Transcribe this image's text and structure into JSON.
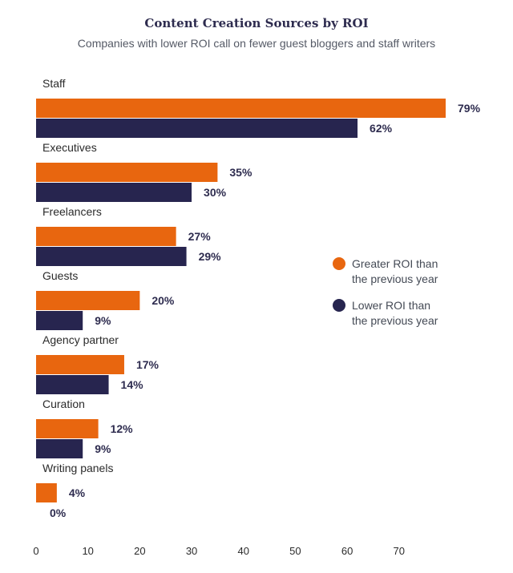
{
  "chart_data": {
    "type": "bar",
    "orientation": "horizontal",
    "title": "Content Creation Sources by ROI",
    "subtitle": "Companies with lower ROI call on fewer guest bloggers and staff writers",
    "categories": [
      "Staff",
      "Executives",
      "Freelancers",
      "Guests",
      "Agency partner",
      "Curation",
      "Writing panels"
    ],
    "series": [
      {
        "name": "Greater ROI than the previous year",
        "legend_lines": [
          "Greater ROI than",
          "the previous year"
        ],
        "color": "#e8660f",
        "values": [
          79,
          35,
          27,
          20,
          17,
          12,
          4
        ],
        "labels": [
          "79%",
          "35%",
          "27%",
          "20%",
          "17%",
          "12%",
          "4%"
        ]
      },
      {
        "name": "Lower ROI than the previous year",
        "legend_lines": [
          "Lower ROI than",
          "the previous year"
        ],
        "color": "#27254f",
        "values": [
          62,
          30,
          29,
          9,
          14,
          9,
          0
        ],
        "labels": [
          "62%",
          "30%",
          "29%",
          "9%",
          "14%",
          "9%",
          "0%"
        ]
      }
    ],
    "xticks": [
      "0",
      "10",
      "20",
      "30",
      "40",
      "50",
      "60",
      "70"
    ],
    "xlim": [
      0,
      79
    ],
    "grid": false,
    "legend_position": "right"
  }
}
